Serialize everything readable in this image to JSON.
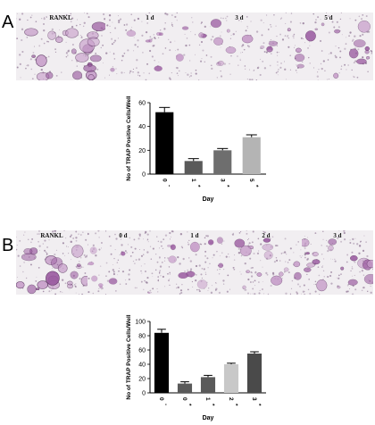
{
  "figure": {
    "panel_a": {
      "letter": "A",
      "images": [
        {
          "label": "RANKL",
          "density": 1.0
        },
        {
          "label": "1 d",
          "density": 0.25
        },
        {
          "label": "3 d",
          "density": 0.5
        },
        {
          "label": "5 d",
          "density": 0.65
        }
      ]
    },
    "panel_b": {
      "letter": "B",
      "images": [
        {
          "label": "RANKL",
          "density": 0.9
        },
        {
          "label": "0 d",
          "density": 0.2
        },
        {
          "label": "1 d",
          "density": 0.35
        },
        {
          "label": "2 d",
          "density": 0.55
        },
        {
          "label": "3 d",
          "density": 0.7
        }
      ]
    }
  },
  "chart_data": [
    {
      "type": "bar",
      "ylabel": "No of TRAP Positive Cells/Well",
      "xlabel": "Day",
      "ylim": [
        0,
        60
      ],
      "yticks": [
        0,
        20,
        40,
        60
      ],
      "categories": [
        "0",
        "1",
        "3",
        "5"
      ],
      "category_marks": [
        "-",
        "*",
        "*",
        "*"
      ],
      "values": [
        52,
        11,
        20,
        31
      ],
      "errors": [
        4,
        2,
        1.5,
        2
      ],
      "colors": [
        "#000000",
        "#5a5a5a",
        "#6e6e6e",
        "#b4b4b4"
      ]
    },
    {
      "type": "bar",
      "ylabel": "No of TRAP Positive Cells/Well",
      "xlabel": "Day",
      "ylim": [
        0,
        100
      ],
      "yticks": [
        0,
        20,
        40,
        60,
        80,
        100
      ],
      "categories": [
        "0",
        "0",
        "1",
        "2",
        "3"
      ],
      "category_marks": [
        "-",
        "*",
        "*",
        "*",
        "*"
      ],
      "values": [
        84,
        13,
        22,
        40,
        55
      ],
      "errors": [
        5,
        2.5,
        2.5,
        1.5,
        2.5
      ],
      "colors": [
        "#000000",
        "#5a5a5a",
        "#5a5a5a",
        "#c8c8c8",
        "#4a4a4a"
      ]
    }
  ]
}
